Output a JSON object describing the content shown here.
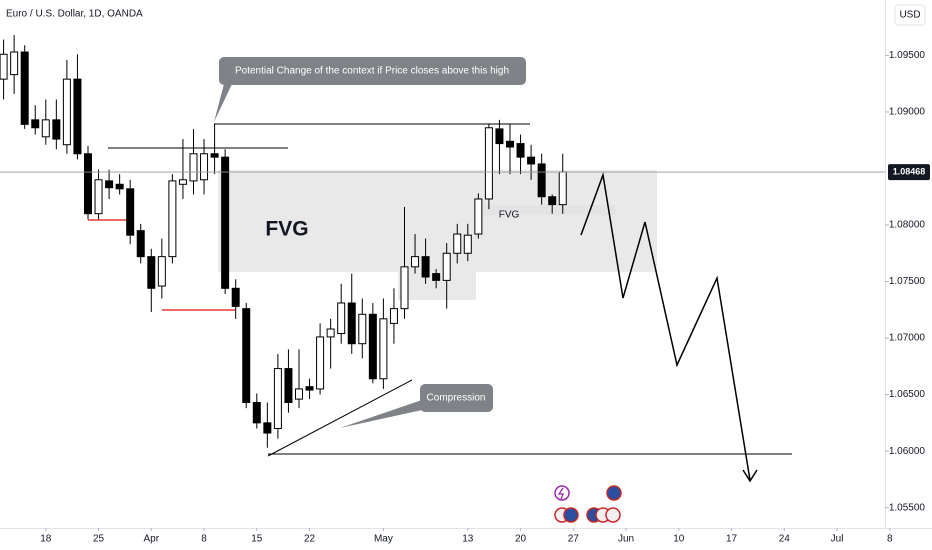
{
  "chart_data": {
    "type": "candlestick",
    "title": "Euro / U.S. Dollar, 1D, OANDA",
    "currency": "USD",
    "current_price": 1.08468,
    "annotations": {
      "callout_high": "Potential Change of the context if Price closes above this high",
      "fvg_main": "FVG",
      "fvg_small": "FVG",
      "compression": "Compression"
    },
    "up_color": "#ffffff",
    "down_color": "#000000",
    "outline_color": "#000000",
    "series": [
      {
        "open": [
          1.0929,
          1.0933,
          1.0953,
          1.0893,
          1.0878,
          1.0893,
          1.0871,
          1.0929,
          1.0863,
          1.081,
          1.0839,
          1.0836,
          1.0832,
          1.0795,
          1.0772,
          1.0746,
          1.0772,
          1.0836,
          1.0839,
          1.084,
          1.0863,
          1.086,
          1.0744,
          1.0726,
          1.0643,
          1.0625,
          1.062,
          1.0673,
          1.0646,
          1.0657,
          1.0655,
          1.0701,
          1.0704,
          1.0731,
          1.0695,
          1.0721,
          1.0664,
          1.0713,
          1.0726,
          1.0763,
          1.0772,
          1.0757,
          1.0751,
          1.0775,
          1.0775,
          1.0792,
          1.0823,
          1.0885,
          1.0874,
          1.0872,
          1.086,
          1.0854,
          1.0825,
          1.0818
        ],
        "high": [
          1.0964,
          1.0968,
          1.0959,
          1.0906,
          1.0911,
          1.0911,
          1.0946,
          1.0951,
          1.087,
          1.0849,
          1.0849,
          1.0845,
          1.084,
          1.0801,
          1.0779,
          1.0788,
          1.0845,
          1.0876,
          1.0885,
          1.0876,
          1.0889,
          1.0867,
          1.0752,
          1.0731,
          1.0651,
          1.0643,
          1.0686,
          1.069,
          1.069,
          1.0664,
          1.0713,
          1.0717,
          1.0748,
          1.0757,
          1.0735,
          1.0731,
          1.0735,
          1.0744,
          1.0816,
          1.0792,
          1.0788,
          1.0761,
          1.0784,
          1.0801,
          1.0801,
          1.0828,
          1.0889,
          1.0893,
          1.0889,
          1.088,
          1.0871,
          1.0863,
          1.0827,
          1.0863
        ],
        "low": [
          1.0911,
          1.0916,
          1.0885,
          1.088,
          1.0871,
          1.0867,
          1.0863,
          1.0858,
          1.0805,
          1.0805,
          1.0823,
          1.0827,
          1.0783,
          1.0766,
          1.0723,
          1.0735,
          1.0766,
          1.0823,
          1.0827,
          1.0827,
          1.0845,
          1.0739,
          1.0717,
          1.0638,
          1.062,
          1.0603,
          1.0611,
          1.0634,
          1.0638,
          1.0646,
          1.065,
          1.0673,
          1.0695,
          1.0686,
          1.0682,
          1.066,
          1.0655,
          1.0695,
          1.0717,
          1.0757,
          1.0748,
          1.0744,
          1.0726,
          1.0766,
          1.0768,
          1.0788,
          1.0814,
          1.0845,
          1.0845,
          1.0845,
          1.084,
          1.0818,
          1.081,
          1.081
        ],
        "close": [
          1.0951,
          1.0953,
          1.0889,
          1.0886,
          1.0893,
          1.0876,
          1.0929,
          1.0863,
          1.081,
          1.084,
          1.0833,
          1.0832,
          1.0791,
          1.0772,
          1.0744,
          1.0772,
          1.0839,
          1.084,
          1.0863,
          1.0863,
          1.086,
          1.0744,
          1.0728,
          1.0643,
          1.0625,
          1.0616,
          1.0673,
          1.0643,
          1.0655,
          1.0654,
          1.0701,
          1.0708,
          1.0731,
          1.0695,
          1.0721,
          1.0664,
          1.0717,
          1.0726,
          1.0763,
          1.0772,
          1.0754,
          1.0751,
          1.0775,
          1.0792,
          1.0791,
          1.0823,
          1.0886,
          1.0872,
          1.0869,
          1.086,
          1.0854,
          1.0825,
          1.0818,
          1.08468
        ]
      }
    ],
    "xlim": [
      -0.34,
      88
    ],
    "xticks": [
      {
        "value": 4,
        "label": "18"
      },
      {
        "value": 9,
        "label": "25"
      },
      {
        "value": 14,
        "label": "Apr"
      },
      {
        "value": 19,
        "label": "8"
      },
      {
        "value": 24,
        "label": "15"
      },
      {
        "value": 29,
        "label": "22"
      },
      {
        "value": 36,
        "label": "May"
      },
      {
        "value": 44,
        "label": "13"
      },
      {
        "value": 49,
        "label": "20"
      },
      {
        "value": 54,
        "label": "27"
      },
      {
        "value": 59,
        "label": "Jun"
      },
      {
        "value": 64,
        "label": "10"
      },
      {
        "value": 69,
        "label": "17"
      },
      {
        "value": 74,
        "label": "24"
      },
      {
        "value": 79,
        "label": "Jul"
      },
      {
        "value": 84,
        "label": "8"
      }
    ],
    "ylim": [
      1.0532,
      1.0999
    ],
    "yticks": [
      {
        "value": 1.095,
        "label": "1.09500"
      },
      {
        "value": 1.09,
        "label": "1.09000"
      },
      {
        "value": 1.08,
        "label": "1.08000"
      },
      {
        "value": 1.075,
        "label": "1.07500"
      },
      {
        "value": 1.07,
        "label": "1.07000"
      },
      {
        "value": 1.065,
        "label": "1.06500"
      },
      {
        "value": 1.06,
        "label": "1.06000"
      },
      {
        "value": 1.055,
        "label": "1.05500"
      }
    ],
    "grid": false
  }
}
